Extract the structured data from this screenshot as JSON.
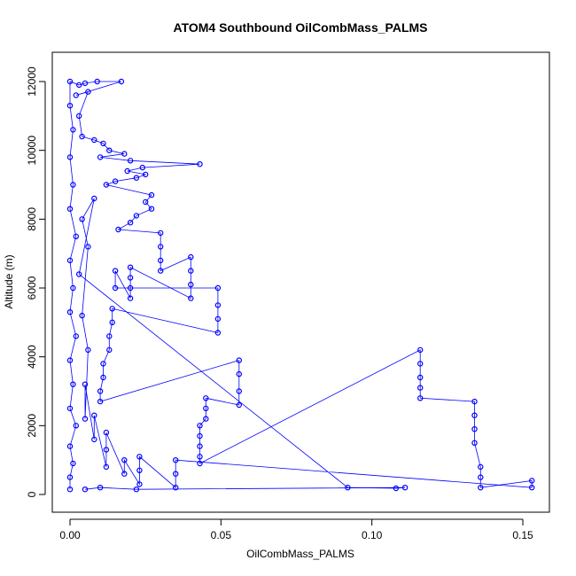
{
  "chart_data": {
    "type": "scatter",
    "title": "ATOM4 Southbound OilCombMass_PALMS",
    "xlabel": "OilCombMass_PALMS",
    "ylabel": "Altitude (m)",
    "xlim": [
      0,
      0.16
    ],
    "ylim": [
      0,
      12500
    ],
    "x_ticks": [
      0.0,
      0.05,
      0.1,
      0.15
    ],
    "x_tick_labels": [
      "0.00",
      "0.05",
      "0.10",
      "0.15"
    ],
    "y_ticks": [
      0,
      2000,
      4000,
      6000,
      8000,
      10000,
      12000
    ],
    "y_tick_labels": [
      "0",
      "2000",
      "4000",
      "6000",
      "8000",
      "10000",
      "12000"
    ],
    "grid": false,
    "legend": "none",
    "marker": "open-circle",
    "connected": true,
    "color": "#0000ff",
    "series": [
      {
        "points": [
          [
            0.0,
            150
          ],
          [
            0.0,
            500
          ],
          [
            0.001,
            900
          ],
          [
            0.0,
            1400
          ],
          [
            0.002,
            2000
          ],
          [
            0.0,
            2500
          ],
          [
            0.001,
            3200
          ],
          [
            0.0,
            3900
          ],
          [
            0.002,
            4600
          ],
          [
            0.0,
            5300
          ],
          [
            0.001,
            6000
          ],
          [
            0.0,
            6800
          ],
          [
            0.002,
            7500
          ],
          [
            0.0,
            8300
          ],
          [
            0.001,
            9000
          ],
          [
            0.0,
            9800
          ],
          [
            0.001,
            10600
          ],
          [
            0.0,
            11300
          ],
          [
            0.0,
            12000
          ],
          [
            0.003,
            11900
          ],
          [
            0.005,
            11950
          ],
          [
            0.009,
            12000
          ],
          [
            0.017,
            12000
          ],
          [
            0.002,
            11600
          ],
          [
            0.006,
            11700
          ],
          [
            0.003,
            11000
          ],
          [
            0.004,
            10400
          ],
          [
            0.008,
            10300
          ],
          [
            0.011,
            10200
          ],
          [
            0.013,
            10000
          ],
          [
            0.018,
            9900
          ],
          [
            0.01,
            9800
          ],
          [
            0.02,
            9700
          ],
          [
            0.043,
            9600
          ],
          [
            0.024,
            9500
          ],
          [
            0.019,
            9400
          ],
          [
            0.025,
            9300
          ],
          [
            0.022,
            9200
          ],
          [
            0.015,
            9100
          ],
          [
            0.012,
            9000
          ],
          [
            0.027,
            8700
          ],
          [
            0.025,
            8500
          ],
          [
            0.027,
            8300
          ],
          [
            0.022,
            8100
          ],
          [
            0.02,
            7900
          ],
          [
            0.016,
            7700
          ],
          [
            0.03,
            7600
          ],
          [
            0.03,
            7200
          ],
          [
            0.03,
            6800
          ],
          [
            0.03,
            6500
          ],
          [
            0.04,
            6900
          ],
          [
            0.04,
            6500
          ],
          [
            0.04,
            6100
          ],
          [
            0.04,
            5700
          ],
          [
            0.02,
            6600
          ],
          [
            0.02,
            6300
          ],
          [
            0.02,
            6000
          ],
          [
            0.02,
            5700
          ],
          [
            0.015,
            6500
          ],
          [
            0.015,
            6000
          ],
          [
            0.049,
            6000
          ],
          [
            0.049,
            5500
          ],
          [
            0.049,
            5100
          ],
          [
            0.049,
            4700
          ],
          [
            0.014,
            5400
          ],
          [
            0.014,
            5000
          ],
          [
            0.013,
            4600
          ],
          [
            0.013,
            4200
          ],
          [
            0.011,
            3800
          ],
          [
            0.011,
            3400
          ],
          [
            0.01,
            3000
          ],
          [
            0.01,
            2700
          ],
          [
            0.056,
            3900
          ],
          [
            0.056,
            3500
          ],
          [
            0.056,
            3000
          ],
          [
            0.056,
            2600
          ],
          [
            0.045,
            2800
          ],
          [
            0.045,
            2500
          ],
          [
            0.045,
            2200
          ],
          [
            0.043,
            2000
          ],
          [
            0.043,
            1700
          ],
          [
            0.043,
            1400
          ],
          [
            0.043,
            1100
          ],
          [
            0.043,
            900
          ],
          [
            0.116,
            4200
          ],
          [
            0.116,
            3800
          ],
          [
            0.116,
            3400
          ],
          [
            0.116,
            3100
          ],
          [
            0.116,
            2800
          ],
          [
            0.134,
            2700
          ],
          [
            0.134,
            2300
          ],
          [
            0.134,
            1900
          ],
          [
            0.134,
            1500
          ],
          [
            0.136,
            800
          ],
          [
            0.136,
            500
          ],
          [
            0.136,
            200
          ],
          [
            0.153,
            400
          ],
          [
            0.153,
            200
          ],
          [
            0.035,
            1000
          ],
          [
            0.035,
            600
          ],
          [
            0.035,
            200
          ],
          [
            0.023,
            1100
          ],
          [
            0.023,
            700
          ],
          [
            0.023,
            300
          ],
          [
            0.018,
            1000
          ],
          [
            0.018,
            600
          ],
          [
            0.012,
            1800
          ],
          [
            0.012,
            1300
          ],
          [
            0.012,
            800
          ],
          [
            0.008,
            2300
          ],
          [
            0.008,
            1600
          ],
          [
            0.005,
            3200
          ],
          [
            0.005,
            2200
          ],
          [
            0.006,
            4200
          ],
          [
            0.004,
            5200
          ],
          [
            0.006,
            7200
          ],
          [
            0.004,
            8000
          ],
          [
            0.008,
            8600
          ],
          [
            0.003,
            6400
          ],
          [
            0.092,
            200
          ],
          [
            0.108,
            180
          ],
          [
            0.111,
            200
          ],
          [
            0.022,
            150
          ],
          [
            0.01,
            200
          ],
          [
            0.005,
            150
          ]
        ]
      }
    ]
  }
}
